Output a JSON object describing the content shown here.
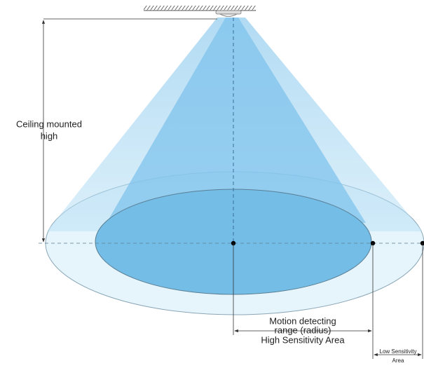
{
  "labels": {
    "ceiling_height": [
      "Ceiling mounted",
      "high"
    ],
    "detecting_range": [
      "Motion detecting",
      "range (radius)",
      "High Sensitivity Area"
    ],
    "low_sensitivity": [
      "Low Sensitivity",
      "Area"
    ]
  }
}
